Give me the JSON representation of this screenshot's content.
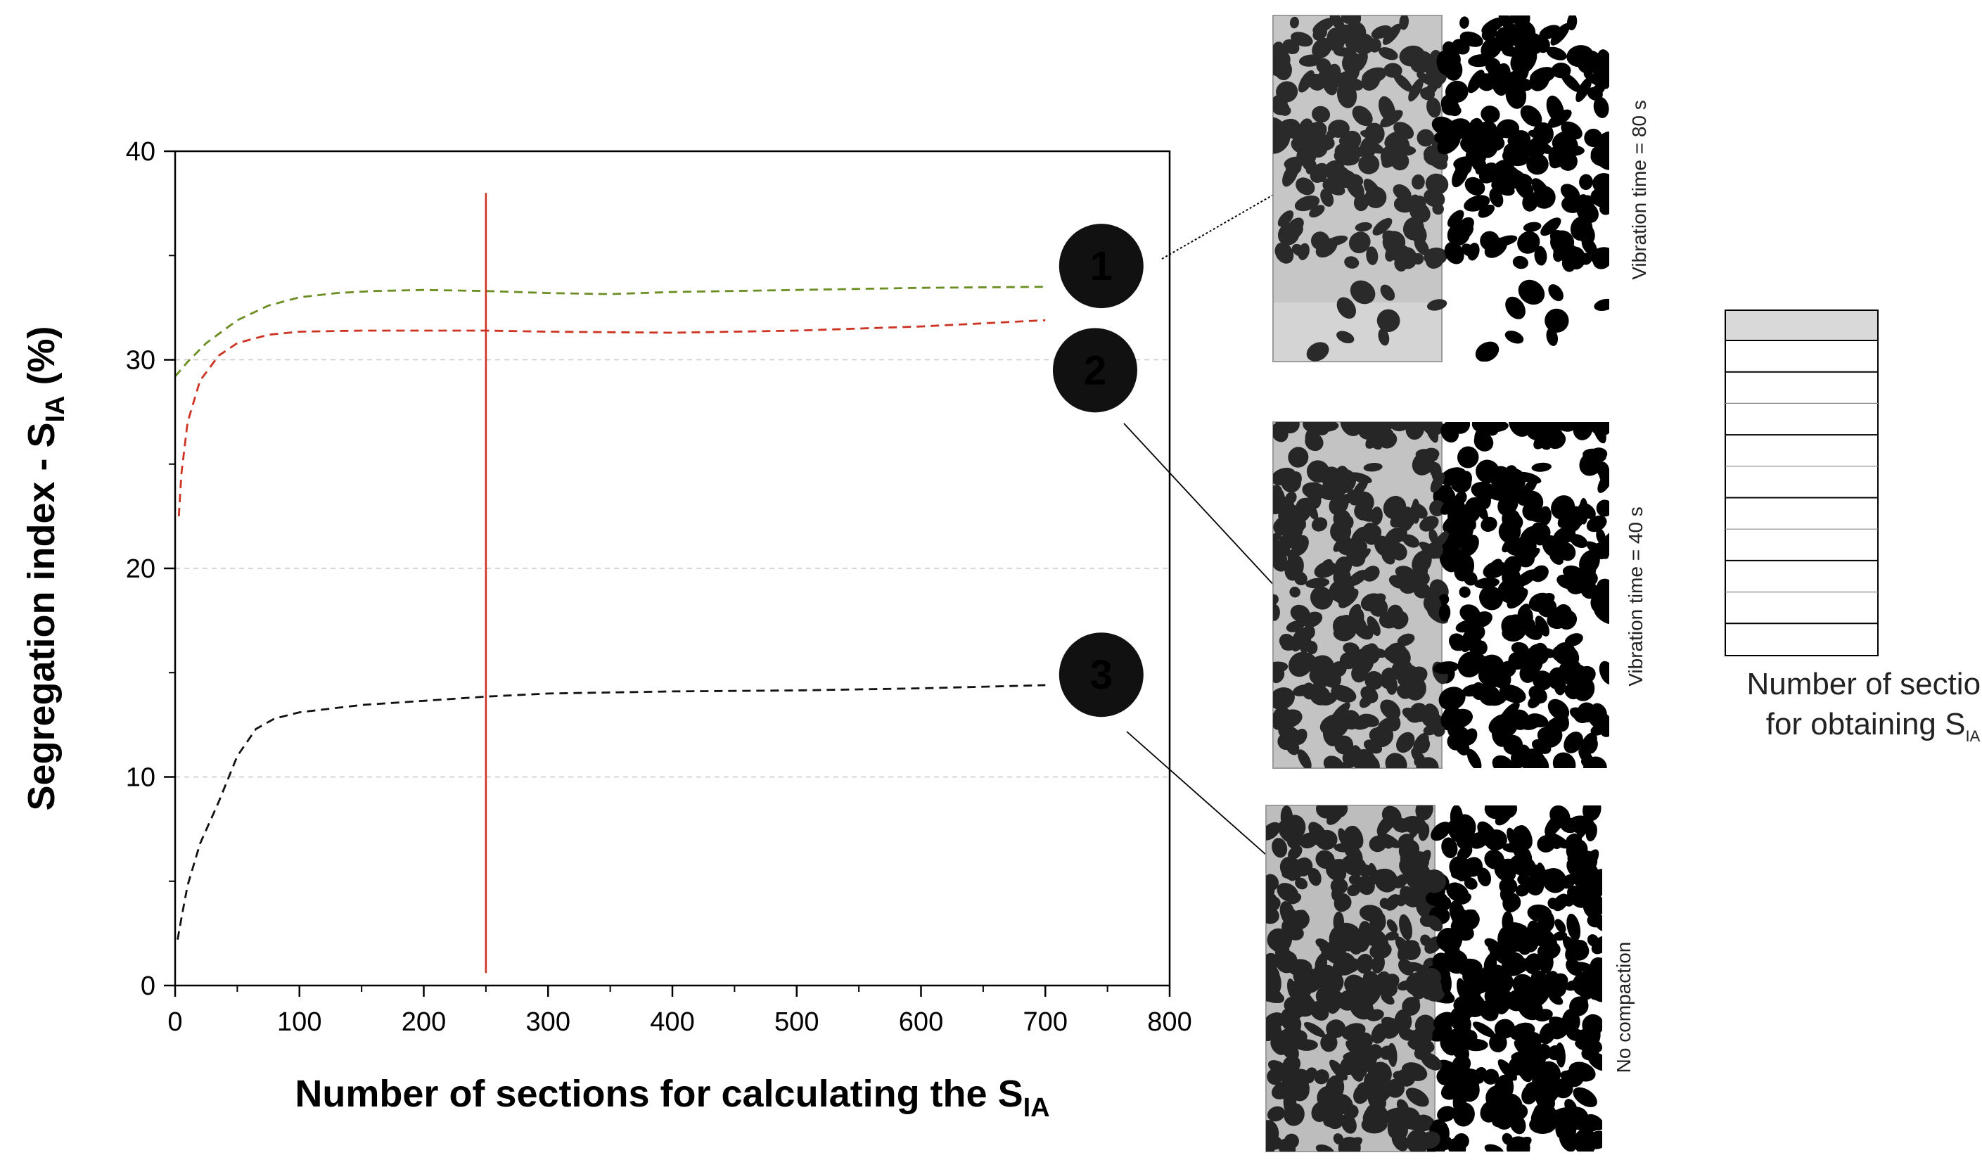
{
  "chart_data": {
    "type": "line",
    "xlabel": "Number of sections for calculating the S",
    "xlabel_sub": "IA",
    "ylabel": "Segregation index - S",
    "ylabel_sub": "IA",
    "ylabel_suffix": " (%)",
    "xlim": [
      0,
      800
    ],
    "ylim": [
      0,
      40
    ],
    "x_ticks": [
      0,
      100,
      200,
      300,
      400,
      500,
      600,
      700,
      800
    ],
    "y_ticks": [
      0,
      10,
      20,
      30,
      40
    ],
    "grid": "horizontal dashed",
    "series": [
      {
        "color": "#6b8e23",
        "x": [
          0,
          10,
          25,
          50,
          75,
          100,
          130,
          160,
          200,
          250,
          300,
          350,
          400,
          500,
          600,
          700
        ],
        "y": [
          29.2,
          29.9,
          30.8,
          31.9,
          32.6,
          33.0,
          33.2,
          33.3,
          33.35,
          33.3,
          33.2,
          33.15,
          33.25,
          33.35,
          33.45,
          33.5
        ]
      },
      {
        "color": "#cc3322",
        "x": [
          3,
          5,
          10,
          20,
          35,
          50,
          75,
          100,
          150,
          200,
          250,
          300,
          400,
          500,
          600,
          700
        ],
        "y": [
          22.5,
          24.5,
          27.0,
          29.0,
          30.2,
          30.8,
          31.2,
          31.35,
          31.4,
          31.4,
          31.4,
          31.35,
          31.3,
          31.4,
          31.6,
          31.9
        ]
      },
      {
        "color": "#111111",
        "x": [
          2,
          5,
          10,
          20,
          35,
          50,
          65,
          80,
          100,
          150,
          200,
          250,
          300,
          400,
          500,
          600,
          700
        ],
        "y": [
          2.2,
          3.2,
          4.8,
          6.8,
          8.8,
          11.0,
          12.3,
          12.8,
          13.1,
          13.45,
          13.65,
          13.85,
          14.0,
          14.1,
          14.15,
          14.25,
          14.4
        ]
      }
    ],
    "vertical_marker": {
      "x": 250,
      "y_range": [
        0.6,
        38.0
      ],
      "color": "#cc3322"
    },
    "markers": [
      {
        "label": "1",
        "x": 745,
        "y": 34.5
      },
      {
        "label": "2",
        "x": 740,
        "y": 29.5
      },
      {
        "label": "3",
        "x": 745,
        "y": 14.9
      }
    ]
  },
  "side_panels": [
    {
      "label": "Vibration time = 80 s"
    },
    {
      "label": "Vibration time = 40 s"
    },
    {
      "label": "No compaction"
    }
  ],
  "sections_diagram": {
    "label_line1": "Number of sections",
    "label_line2": "for obtaining S",
    "label_sub": "IA",
    "header_color": "#d9d9d9"
  }
}
